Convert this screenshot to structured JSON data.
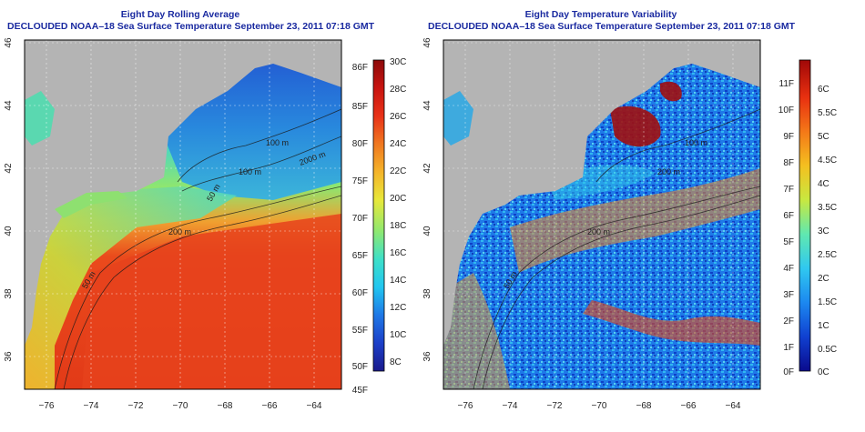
{
  "left": {
    "title_line1": "Eight Day Rolling Average",
    "title_line2": "DECLOUDED NOAA–18 Sea Surface Temperature September 23, 2011 07:18 GMT",
    "contours": [
      "100 m",
      "100 m",
      "50 m",
      "200 m",
      "2000 m",
      "50 m"
    ],
    "colorbar_left": [
      "86F",
      "85F",
      "80F",
      "75F",
      "70F",
      "65F",
      "60F",
      "55F",
      "50F",
      "45F"
    ],
    "colorbar_right": [
      "30C",
      "28C",
      "26C",
      "24C",
      "22C",
      "20C",
      "18C",
      "16C",
      "14C",
      "12C",
      "10C",
      "8C"
    ]
  },
  "right": {
    "title_line1": "Eight Day Temperature Variability",
    "title_line2": "DECLOUDED NOAA–18 Sea Surface Temperature September 23, 2011 07:18 GMT",
    "contours": [
      "100 m",
      "200 m",
      "200 m",
      "50 m"
    ],
    "colorbar_left": [
      "11F",
      "10F",
      "9F",
      "8F",
      "7F",
      "6F",
      "5F",
      "4F",
      "3F",
      "2F",
      "1F",
      "0F"
    ],
    "colorbar_right": [
      "6C",
      "5.5C",
      "5C",
      "4.5C",
      "4C",
      "3.5C",
      "3C",
      "2.5C",
      "2C",
      "1.5C",
      "1C",
      "0.5C",
      "0C"
    ]
  },
  "axes": {
    "x_ticks": [
      "−76",
      "−74",
      "−72",
      "−70",
      "−68",
      "−66",
      "−64"
    ],
    "y_ticks": [
      "46",
      "44",
      "42",
      "40",
      "38",
      "36"
    ]
  },
  "colors": {
    "land": "#b4b4b4",
    "title": "#1a2aa0",
    "sst_scale": [
      "#1a1a8c",
      "#1c3fc8",
      "#1e78e6",
      "#22c6f0",
      "#3ee0c8",
      "#8fe870",
      "#e8e83a",
      "#f4b42a",
      "#f07820",
      "#e83218",
      "#c81410",
      "#8c0a0a"
    ],
    "var_scale": [
      "#0a0a8c",
      "#1040d0",
      "#1c88f0",
      "#30c8f0",
      "#60e8b0",
      "#c8e840",
      "#f4c020",
      "#f47818",
      "#e83010",
      "#a00808"
    ]
  }
}
